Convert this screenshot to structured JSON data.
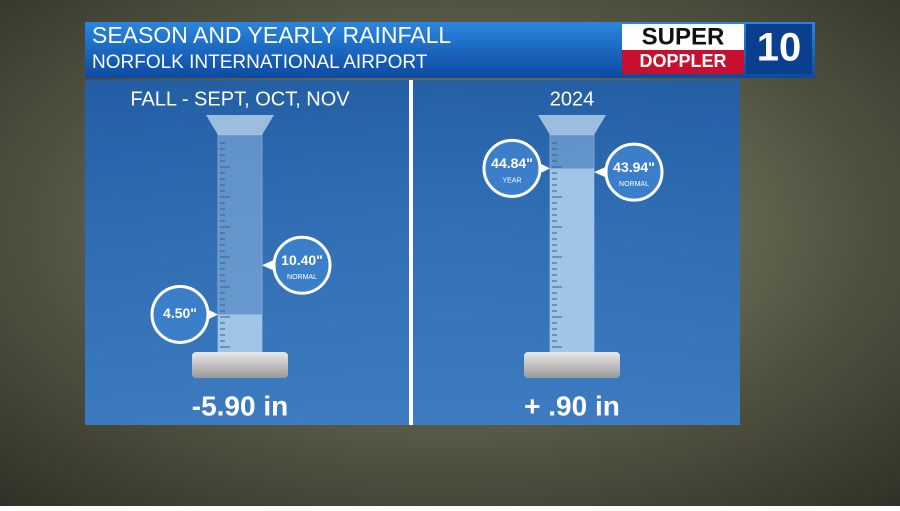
{
  "header": {
    "title": "SEASON AND YEARLY RAINFALL",
    "subtitle": "NORFOLK INTERNATIONAL AIRPORT"
  },
  "logo": {
    "line1": "SUPER",
    "line2": "DOPPLER",
    "number": "10"
  },
  "chart_data": [
    {
      "type": "gauge",
      "title": "FALL - SEPT, OCT, NOV",
      "ylim": [
        0,
        26
      ],
      "difference_label": "-5.90 in",
      "series": [
        {
          "color": "#a9cdec",
          "values": [
            4.5
          ],
          "value_labels": [
            "4.50\""
          ]
        },
        {
          "name": "NORMAL",
          "color": "#ffffff",
          "values": [
            10.4
          ],
          "value_labels": [
            "10.40\""
          ]
        }
      ]
    },
    {
      "type": "gauge",
      "title": "2024",
      "ylim": [
        0,
        53
      ],
      "difference_label": "+ .90 in",
      "series": [
        {
          "name": "YEAR",
          "color": "#a9cdec",
          "values": [
            44.84
          ],
          "value_labels": [
            "44.84\""
          ]
        },
        {
          "name": "NORMAL",
          "color": "#ffffff",
          "values": [
            43.94
          ],
          "value_labels": [
            "43.94\""
          ]
        }
      ]
    }
  ]
}
